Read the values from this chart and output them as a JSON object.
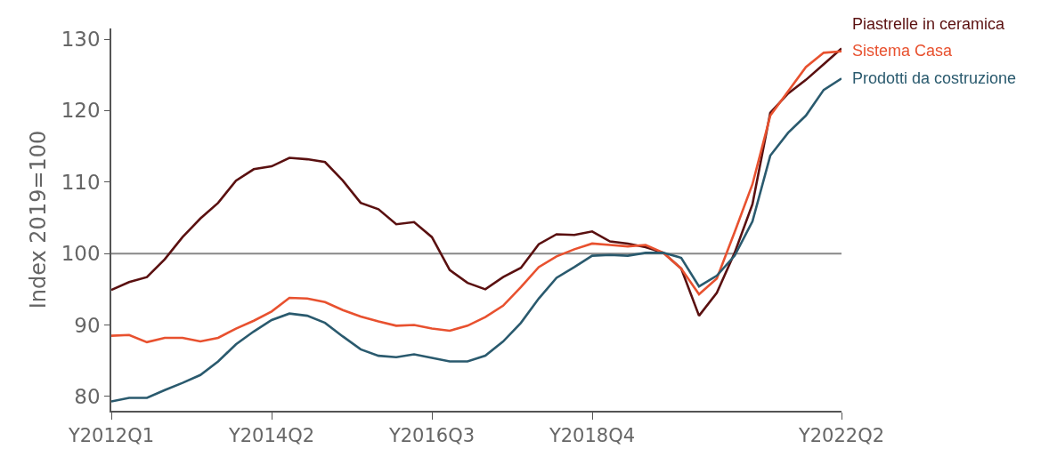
{
  "chart_data": {
    "type": "line",
    "ylabel": "Index 2019=100",
    "categories": [
      "Y2012Q1",
      null,
      null,
      null,
      null,
      null,
      null,
      null,
      null,
      "Y2014Q2",
      null,
      null,
      null,
      null,
      null,
      null,
      null,
      null,
      "Y2016Q3",
      null,
      null,
      null,
      null,
      null,
      null,
      null,
      null,
      "Y2018Q4",
      null,
      null,
      null,
      null,
      null,
      null,
      null,
      null,
      null,
      null,
      null,
      null,
      null,
      "Y2022Q2"
    ],
    "ylim": [
      78,
      131.5
    ],
    "yticks": [
      80,
      90,
      100,
      110,
      120,
      130
    ],
    "grid": false,
    "legend": false,
    "line_style": "solid",
    "marker": "none",
    "ref_lines": [
      {
        "axis": "y",
        "value": 100,
        "color": "#888888"
      }
    ],
    "series": [
      {
        "name": "Piastrelle in ceramica",
        "color": "#5a1010",
        "values": [
          94.9,
          96.0,
          96.7,
          99.2,
          102.3,
          104.9,
          107.1,
          110.2,
          111.8,
          112.2,
          113.4,
          113.2,
          112.8,
          110.2,
          107.1,
          106.2,
          104.1,
          104.4,
          102.3,
          97.7,
          95.9,
          95.0,
          96.7,
          98.0,
          101.3,
          102.7,
          102.6,
          103.1,
          101.7,
          101.4,
          100.9,
          100.1,
          97.9,
          91.3,
          94.5,
          100.1,
          106.9,
          119.7,
          122.4,
          124.3,
          126.5,
          128.7
        ]
      },
      {
        "name": "Sistema Casa",
        "color": "#e8512f",
        "values": [
          88.5,
          88.6,
          87.6,
          88.2,
          88.2,
          87.7,
          88.2,
          89.5,
          90.6,
          91.9,
          93.8,
          93.7,
          93.2,
          92.1,
          91.2,
          90.5,
          89.9,
          90.0,
          89.5,
          89.2,
          89.9,
          91.1,
          92.7,
          95.3,
          98.1,
          99.6,
          100.6,
          101.4,
          101.2,
          101.0,
          101.2,
          100.1,
          97.9,
          94.3,
          96.5,
          103.0,
          109.7,
          119.3,
          122.7,
          126.1,
          128.1,
          128.3
        ]
      },
      {
        "name": "Prodotti da costruzione",
        "color": "#2a5a6e",
        "values": [
          79.3,
          79.8,
          79.8,
          80.9,
          81.9,
          83.0,
          84.9,
          87.3,
          89.1,
          90.7,
          91.6,
          91.3,
          90.3,
          88.4,
          86.6,
          85.7,
          85.5,
          85.9,
          85.4,
          84.9,
          84.9,
          85.7,
          87.7,
          90.3,
          93.7,
          96.6,
          98.1,
          99.7,
          99.8,
          99.7,
          100.1,
          100.1,
          99.4,
          95.4,
          96.9,
          99.7,
          104.5,
          113.7,
          116.9,
          119.3,
          122.9,
          124.5
        ]
      }
    ]
  }
}
